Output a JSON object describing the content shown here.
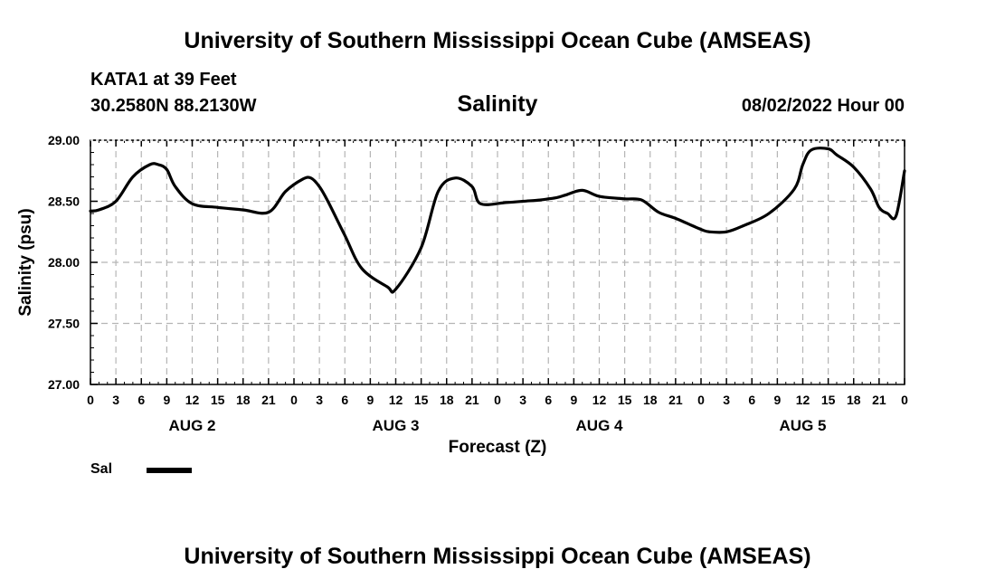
{
  "page": {
    "top_title": "University of Southern Mississippi Ocean Cube (AMSEAS)",
    "bottom_title": "University of Southern Mississippi Ocean Cube (AMSEAS)",
    "station": "KATA1 at 39 Feet",
    "coords": "30.2580N  88.2130W",
    "variable": "Salinity",
    "datetime": "08/02/2022 Hour 00"
  },
  "chart_data": {
    "type": "line",
    "title": "Salinity",
    "xlabel": "Forecast (Z)",
    "ylabel": "Salinity (psu)",
    "ylim": [
      27.0,
      29.0
    ],
    "yticks": [
      "27.00",
      "27.50",
      "28.00",
      "28.50",
      "29.00"
    ],
    "xlim": [
      0,
      96
    ],
    "xtick_labels": [
      "0",
      "3",
      "6",
      "9",
      "12",
      "15",
      "18",
      "21",
      "0",
      "3",
      "6",
      "9",
      "12",
      "15",
      "18",
      "21",
      "0",
      "3",
      "6",
      "9",
      "12",
      "15",
      "18",
      "21",
      "0",
      "3",
      "6",
      "9",
      "12",
      "15",
      "18",
      "21",
      "0"
    ],
    "days": [
      {
        "label": "AUG 2",
        "center_hour": 12
      },
      {
        "label": "AUG 3",
        "center_hour": 36
      },
      {
        "label": "AUG 4",
        "center_hour": 60
      },
      {
        "label": "AUG 5",
        "center_hour": 84
      }
    ],
    "grid": true,
    "series": [
      {
        "name": "Sal",
        "color": "#000000",
        "x": [
          0,
          1,
          3,
          5,
          7,
          8,
          9,
          10,
          12,
          15,
          18,
          21,
          23,
          25,
          26,
          27,
          28,
          30,
          32,
          35,
          36,
          39,
          41,
          43,
          45,
          46,
          49,
          51,
          53,
          54,
          55,
          56,
          58,
          60,
          63,
          65,
          67,
          69,
          72,
          73,
          75,
          77,
          80,
          83,
          84,
          85,
          87,
          88,
          90,
          92,
          93,
          94,
          95,
          96
        ],
        "values": [
          28.42,
          28.43,
          28.5,
          28.7,
          28.8,
          28.8,
          28.76,
          28.62,
          28.48,
          28.45,
          28.43,
          28.41,
          28.58,
          28.68,
          28.69,
          28.62,
          28.5,
          28.22,
          27.95,
          27.8,
          27.78,
          28.12,
          28.58,
          28.69,
          28.62,
          28.48,
          28.49,
          28.5,
          28.51,
          28.52,
          28.53,
          28.55,
          28.59,
          28.54,
          28.52,
          28.51,
          28.41,
          28.36,
          28.27,
          28.25,
          28.25,
          28.3,
          28.4,
          28.6,
          28.8,
          28.92,
          28.93,
          28.88,
          28.78,
          28.6,
          28.45,
          28.4,
          28.38,
          28.75
        ]
      }
    ],
    "legend": {
      "position": "bottom-left",
      "entries": [
        "Sal"
      ]
    }
  }
}
